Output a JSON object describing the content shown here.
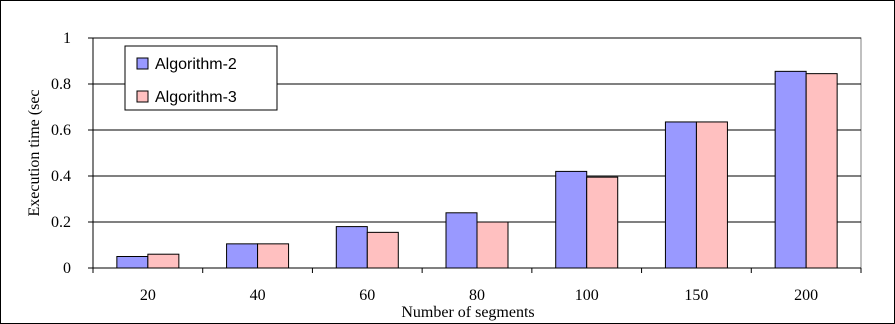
{
  "chart_data": {
    "type": "bar",
    "xlabel": "Number of segments",
    "ylabel": "Execution time (sec",
    "categories": [
      "20",
      "40",
      "60",
      "80",
      "100",
      "150",
      "200"
    ],
    "series": [
      {
        "name": "Algorithm-2",
        "color": "#9999ff",
        "values": [
          0.05,
          0.105,
          0.18,
          0.24,
          0.42,
          0.635,
          0.855
        ]
      },
      {
        "name": "Algorithm-3",
        "color": "#ffc0c0",
        "values": [
          0.06,
          0.105,
          0.155,
          0.2,
          0.395,
          0.635,
          0.845
        ]
      }
    ],
    "ylim": [
      0,
      1
    ],
    "yticks": [
      "0",
      "0.2",
      "0.4",
      "0.6",
      "0.8",
      "1"
    ],
    "ytick_values": [
      0,
      0.2,
      0.4,
      0.6,
      0.8,
      1
    ],
    "grid": true,
    "legend_position": "top-left",
    "plot_background": "#ffffff",
    "plot_border": "#808080"
  }
}
